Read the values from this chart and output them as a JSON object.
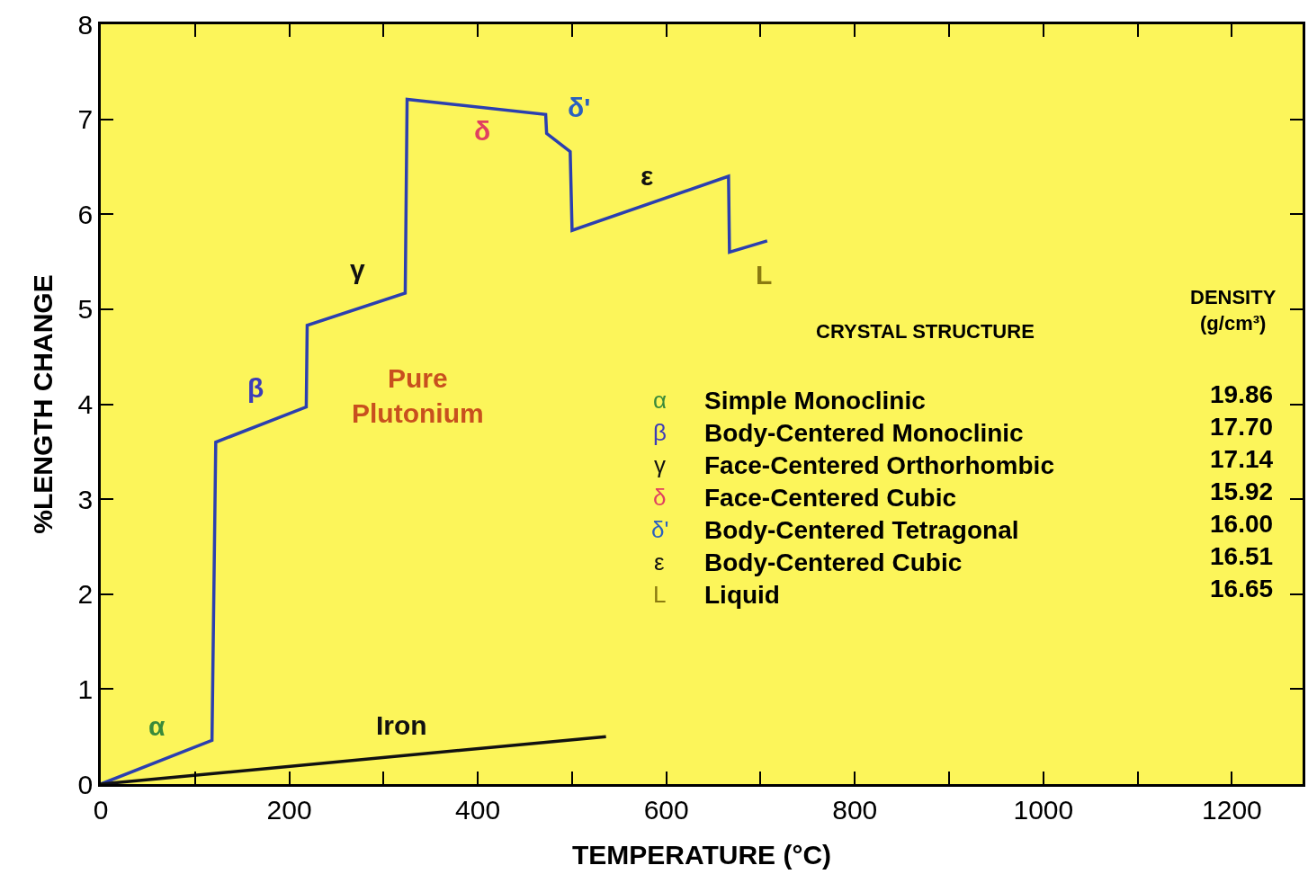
{
  "chart_data": {
    "type": "line",
    "xlabel": "TEMPERATURE (°C)",
    "ylabel": "%LENGTH CHANGE",
    "series": [
      {
        "color": "#2b3fb0",
        "x": [
          0,
          118,
          122,
          218,
          219,
          323,
          325,
          472,
          473,
          498,
          500,
          666,
          667,
          707
        ],
        "values": [
          0,
          0.46,
          3.6,
          3.97,
          4.83,
          5.17,
          7.21,
          7.05,
          6.85,
          6.66,
          5.83,
          6.4,
          5.6,
          5.72
        ]
      },
      {
        "color": "#111111",
        "x": [
          0,
          536
        ],
        "values": [
          0,
          0.5
        ]
      }
    ],
    "xlim": [
      0,
      1275
    ],
    "ylim": [
      0,
      8
    ],
    "xticks": [
      0,
      {
        "value": 100,
        "label": null
      },
      200,
      {
        "value": 300,
        "label": null
      },
      400,
      {
        "value": 500,
        "label": null
      },
      600,
      {
        "value": 700,
        "label": null
      },
      800,
      {
        "value": 900,
        "label": null
      },
      1000,
      {
        "value": 1100,
        "label": null
      },
      1200
    ],
    "yticks": [
      0,
      1,
      2,
      3,
      4,
      5,
      6,
      7,
      8
    ],
    "grid": false,
    "marker": "none",
    "line_style": "solid",
    "annotations": [
      "α",
      "β",
      "γ",
      "δ",
      "δ'",
      "ε",
      "L",
      "Pure\nPlutonium",
      "Iron",
      "CRYSTAL STRUCTURE",
      "DENSITY\n(g/cm³)",
      "α",
      "Simple Monoclinic",
      "19.86",
      "β",
      "Body-Centered Monoclinic",
      "17.70",
      "γ",
      "Face-Centered Orthorhombic",
      "17.14",
      "δ",
      "Face-Centered Cubic",
      "15.92",
      "δ'",
      "Body-Centered Tetragonal",
      "16.00",
      "ε",
      "Body-Centered Cubic",
      "16.51",
      "L",
      "Liquid",
      "16.65"
    ]
  }
}
